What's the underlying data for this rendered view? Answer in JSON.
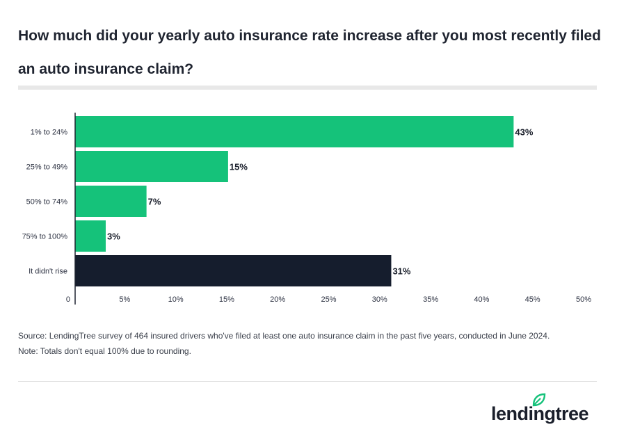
{
  "header": {
    "title": "How much did your yearly auto insurance rate increase after you most recently filed an auto insurance claim?"
  },
  "chart_data": {
    "type": "bar",
    "orientation": "horizontal",
    "categories": [
      "1% to 24%",
      "25% to 49%",
      "50% to 74%",
      "75% to 100%",
      "It didn't rise"
    ],
    "values": [
      43,
      15,
      7,
      3,
      31
    ],
    "value_labels": [
      "43%",
      "15%",
      "7%",
      "3%",
      "31%"
    ],
    "bar_colors": [
      "#15c27a",
      "#15c27a",
      "#15c27a",
      "#15c27a",
      "#151d2d"
    ],
    "xlim": [
      0,
      50
    ],
    "x_ticks": [
      0,
      5,
      10,
      15,
      20,
      25,
      30,
      35,
      40,
      45,
      50
    ],
    "x_tick_labels": [
      "0",
      "5%",
      "10%",
      "15%",
      "20%",
      "25%",
      "30%",
      "35%",
      "40%",
      "45%",
      "50%"
    ],
    "grid": false,
    "legend": "none"
  },
  "footer": {
    "source": "Source: LendingTree survey of 464 insured drivers who've filed at least one auto insurance claim in the past five years, conducted in June 2024.",
    "note": "Note: Totals don't equal 100% due to rounding."
  },
  "brand": {
    "name": "lendingtree",
    "logo_icon": "leaf-icon",
    "accent": "#15c27a",
    "dark": "#151d2d"
  }
}
